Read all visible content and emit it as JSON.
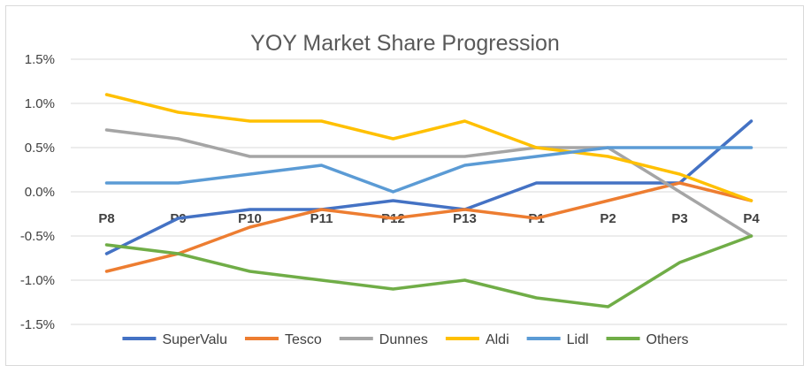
{
  "chart_data": {
    "type": "line",
    "title": "YOY Market Share Progression",
    "categories": [
      "P8",
      "P9",
      "P10",
      "P11",
      "P12",
      "P13",
      "P1",
      "P2",
      "P3",
      "P4"
    ],
    "ylim": [
      -1.5,
      1.5
    ],
    "yticks": [
      1.5,
      1.0,
      0.5,
      0.0,
      -0.5,
      -1.0,
      -1.5
    ],
    "ytick_labels": [
      "1.5%",
      "1.0%",
      "0.5%",
      "0.0%",
      "-0.5%",
      "-1.0%",
      "-1.5%"
    ],
    "grid": true,
    "legend_position": "bottom",
    "series": [
      {
        "name": "SuperValu",
        "color": "#4472c4",
        "values": [
          -0.7,
          -0.3,
          -0.2,
          -0.2,
          -0.1,
          -0.2,
          0.1,
          0.1,
          0.1,
          0.8
        ]
      },
      {
        "name": "Tesco",
        "color": "#ed7d31",
        "values": [
          -0.9,
          -0.7,
          -0.4,
          -0.2,
          -0.3,
          -0.2,
          -0.3,
          -0.1,
          0.1,
          -0.1
        ]
      },
      {
        "name": "Dunnes",
        "color": "#a5a5a5",
        "values": [
          0.7,
          0.6,
          0.4,
          0.4,
          0.4,
          0.4,
          0.5,
          0.5,
          0.0,
          -0.5
        ]
      },
      {
        "name": "Aldi",
        "color": "#ffc000",
        "values": [
          1.1,
          0.9,
          0.8,
          0.8,
          0.6,
          0.8,
          0.5,
          0.4,
          0.2,
          -0.1
        ]
      },
      {
        "name": "Lidl",
        "color": "#5b9bd5",
        "values": [
          0.1,
          0.1,
          0.2,
          0.3,
          0.0,
          0.3,
          0.4,
          0.5,
          0.5,
          0.5
        ]
      },
      {
        "name": "Others",
        "color": "#70ad47",
        "values": [
          -0.6,
          -0.7,
          -0.9,
          -1.0,
          -1.1,
          -1.0,
          -1.2,
          -1.3,
          -0.8,
          -0.5
        ]
      }
    ]
  }
}
